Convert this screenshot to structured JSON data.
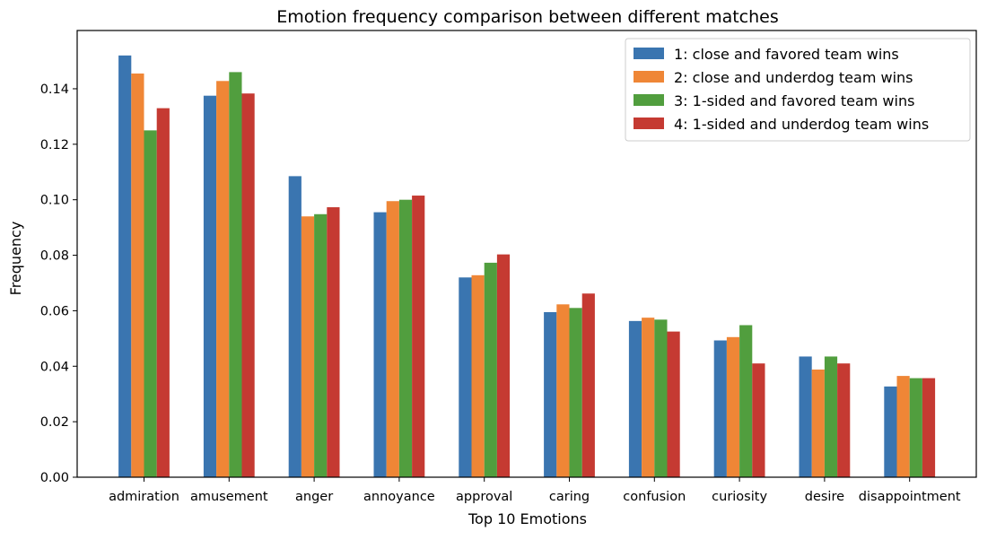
{
  "chart_data": {
    "type": "bar",
    "title": "Emotion frequency comparison between different matches",
    "xlabel": "Top 10 Emotions",
    "ylabel": "Frequency",
    "ylim": [
      0,
      0.161
    ],
    "yticks": [
      0.0,
      0.02,
      0.04,
      0.06,
      0.08,
      0.1,
      0.12,
      0.14
    ],
    "ytick_labels": [
      "0.00",
      "0.02",
      "0.04",
      "0.06",
      "0.08",
      "0.10",
      "0.12",
      "0.14"
    ],
    "grid": false,
    "legend_position": "top-right",
    "categories": [
      "admiration",
      "amusement",
      "anger",
      "annoyance",
      "approval",
      "caring",
      "confusion",
      "curiosity",
      "desire",
      "disappointment"
    ],
    "series": [
      {
        "name": "1: close and favored team wins",
        "color": "#3a75b0",
        "values": [
          0.152,
          0.1375,
          0.1085,
          0.0955,
          0.072,
          0.0595,
          0.0563,
          0.0493,
          0.0435,
          0.0327
        ]
      },
      {
        "name": "2: close and underdog team wins",
        "color": "#ef8636",
        "values": [
          0.1455,
          0.1428,
          0.094,
          0.0995,
          0.0728,
          0.0623,
          0.0575,
          0.0505,
          0.0388,
          0.0365
        ]
      },
      {
        "name": "3: 1-sided and favored team wins",
        "color": "#519e3e",
        "values": [
          0.125,
          0.146,
          0.0948,
          0.1,
          0.0773,
          0.061,
          0.0568,
          0.0548,
          0.0435,
          0.0357
        ]
      },
      {
        "name": "4: 1-sided and underdog team wins",
        "color": "#c53a32",
        "values": [
          0.133,
          0.1383,
          0.0973,
          0.1015,
          0.0803,
          0.0662,
          0.0525,
          0.041,
          0.041,
          0.0357
        ]
      }
    ]
  }
}
